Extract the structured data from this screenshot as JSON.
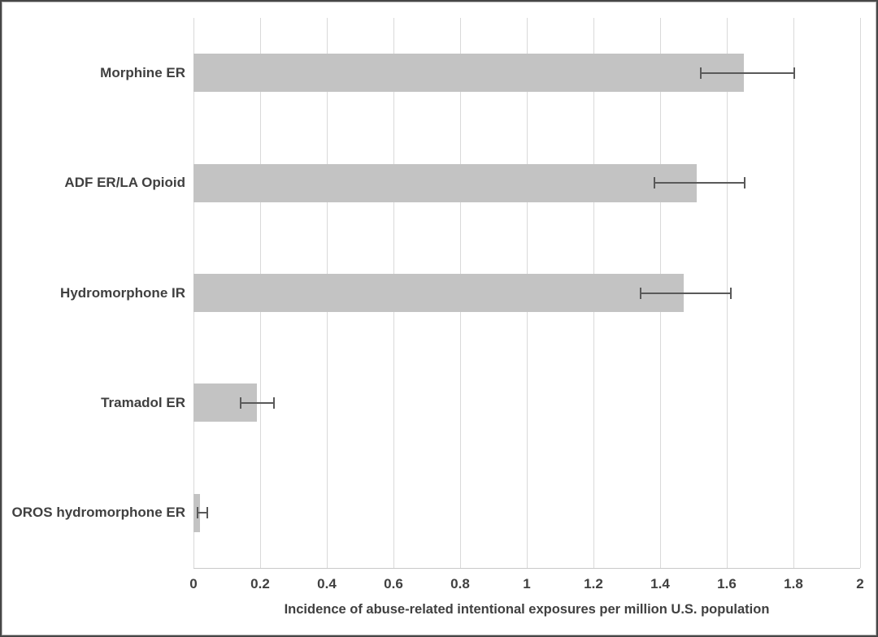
{
  "chart_data": {
    "type": "bar",
    "orientation": "horizontal",
    "title": "",
    "xlabel": "Incidence of abuse-related intentional exposures per million U.S. population",
    "ylabel": "",
    "categories": [
      "Morphine ER",
      "ADF ER/LA Opioid",
      "Hydromorphone IR",
      "Tramadol ER",
      "OROS hydromorphone ER"
    ],
    "values": [
      1.65,
      1.51,
      1.47,
      0.19,
      0.02
    ],
    "error_low": [
      1.52,
      1.38,
      1.34,
      0.14,
      0.01
    ],
    "error_high": [
      1.8,
      1.65,
      1.61,
      0.24,
      0.04
    ],
    "xlim": [
      0,
      2
    ],
    "xticks": [
      0,
      0.2,
      0.4,
      0.6,
      0.8,
      1,
      1.2,
      1.4,
      1.6,
      1.8,
      2
    ],
    "xtick_labels": [
      "0",
      "0.2",
      "0.4",
      "0.6",
      "0.8",
      "1",
      "1.2",
      "1.4",
      "1.6",
      "1.8",
      "2"
    ],
    "grid": true,
    "legend": false,
    "colors": {
      "bar_fill": "#c3c3c3",
      "gridline": "#d9d9d9",
      "axis_line": "#c9c9c9",
      "error_bar": "#595959",
      "text": "#404040",
      "background": "#ffffff",
      "border": "#474747"
    }
  }
}
